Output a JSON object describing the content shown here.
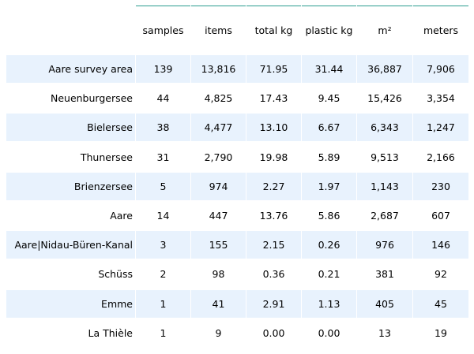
{
  "chart_data": {
    "type": "table",
    "columns": [
      "samples",
      "items",
      "total kg",
      "plastic kg",
      "m²",
      "meters"
    ],
    "rows": [
      {
        "label": "Aare survey area",
        "values": [
          "139",
          "13,816",
          "71.95",
          "31.44",
          "36,887",
          "7,906"
        ]
      },
      {
        "label": "Neuenburgersee",
        "values": [
          "44",
          "4,825",
          "17.43",
          "9.45",
          "15,426",
          "3,354"
        ]
      },
      {
        "label": "Bielersee",
        "values": [
          "38",
          "4,477",
          "13.10",
          "6.67",
          "6,343",
          "1,247"
        ]
      },
      {
        "label": "Thunersee",
        "values": [
          "31",
          "2,790",
          "19.98",
          "5.89",
          "9,513",
          "2,166"
        ]
      },
      {
        "label": "Brienzersee",
        "values": [
          "5",
          "974",
          "2.27",
          "1.97",
          "1,143",
          "230"
        ]
      },
      {
        "label": "Aare",
        "values": [
          "14",
          "447",
          "13.76",
          "5.86",
          "2,687",
          "607"
        ]
      },
      {
        "label": "Aare|Nidau-Büren-Kanal",
        "values": [
          "3",
          "155",
          "2.15",
          "0.26",
          "976",
          "146"
        ]
      },
      {
        "label": "Schüss",
        "values": [
          "2",
          "98",
          "0.36",
          "0.21",
          "381",
          "92"
        ]
      },
      {
        "label": "Emme",
        "values": [
          "1",
          "41",
          "2.91",
          "1.13",
          "405",
          "45"
        ]
      },
      {
        "label": "La Thièle",
        "values": [
          "1",
          "9",
          "0.00",
          "0.00",
          "13",
          "19"
        ]
      }
    ],
    "colors": {
      "header_rule": "#2a9d8f",
      "row_shade": "#e8f2fd"
    }
  }
}
